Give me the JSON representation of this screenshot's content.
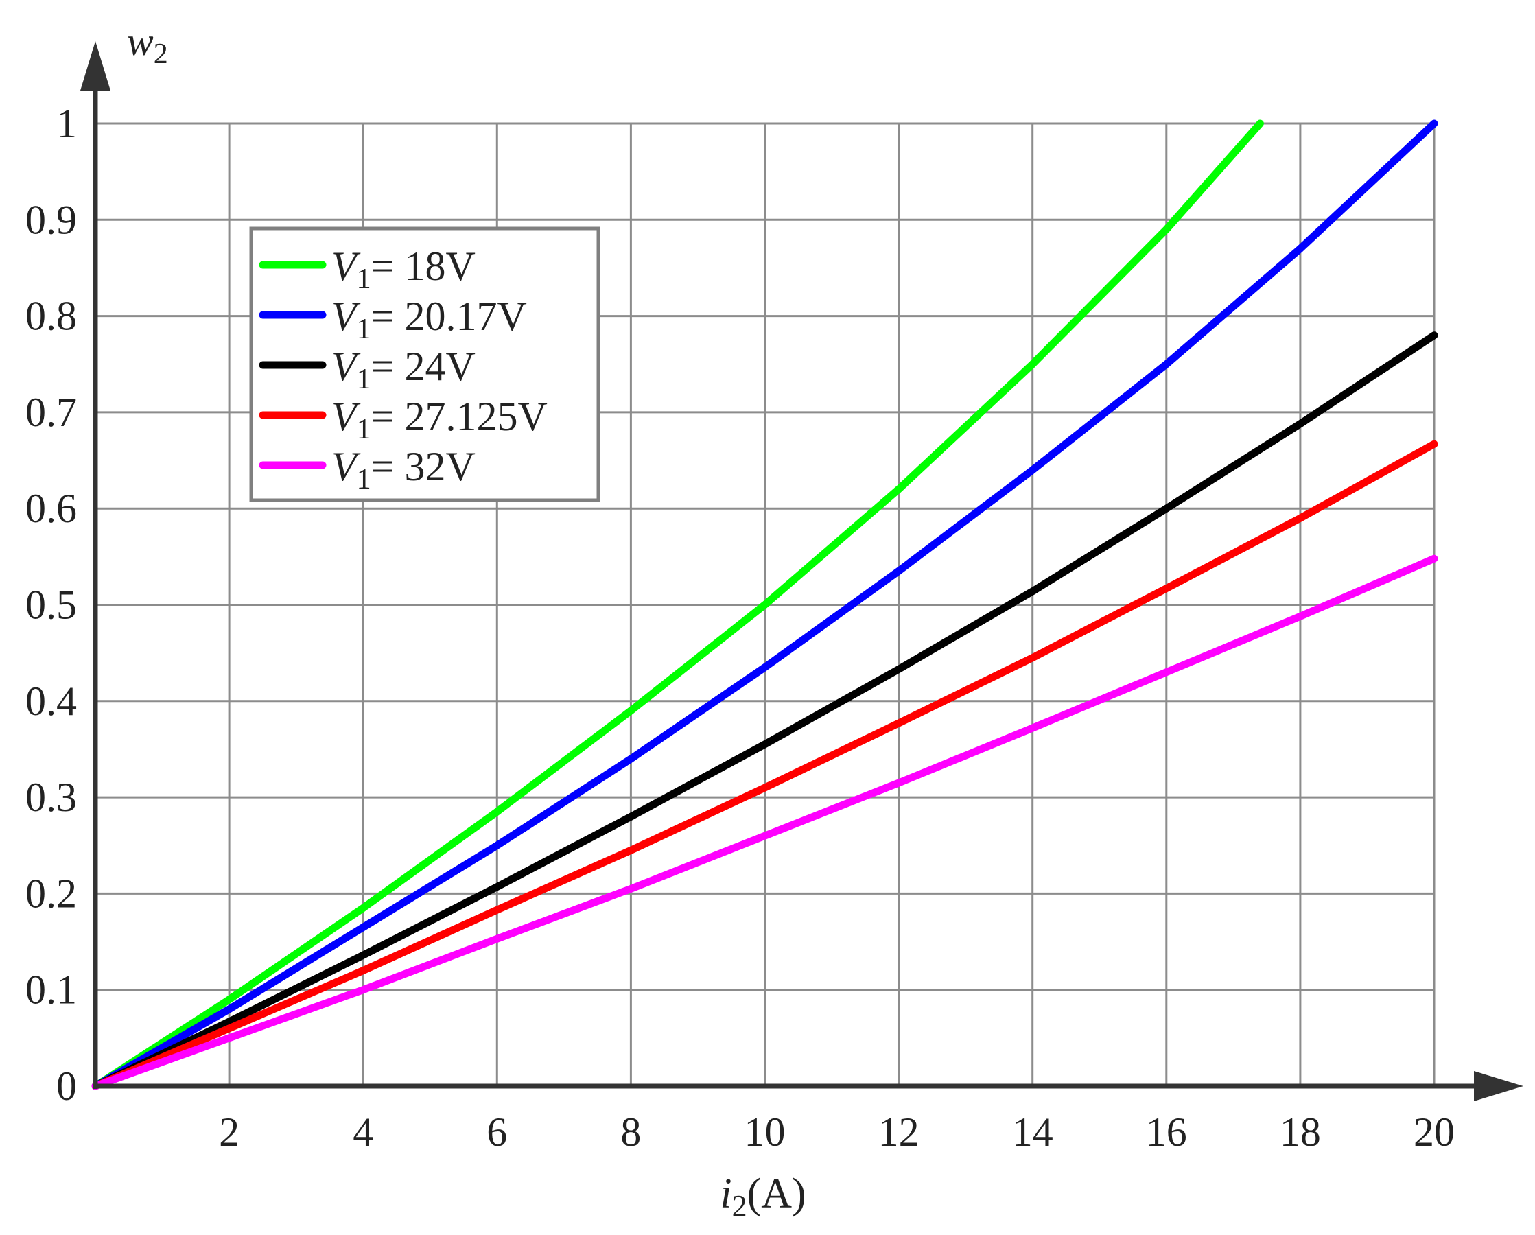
{
  "chart_data": {
    "type": "line",
    "xlabel": "i",
    "xlabel_sub": "2",
    "xlabel_unit": "(A)",
    "ylabel": "w",
    "ylabel_sub": "2",
    "xlim": [
      0,
      20
    ],
    "ylim": [
      0,
      1
    ],
    "x_ticks": [
      2,
      4,
      6,
      8,
      10,
      12,
      14,
      16,
      18,
      20
    ],
    "x_tick_labels": [
      "2",
      "4",
      "6",
      "8",
      "10",
      "12",
      "14",
      "16",
      "18",
      "20"
    ],
    "y_ticks": [
      0,
      0.1,
      0.2,
      0.3,
      0.4,
      0.5,
      0.6,
      0.7,
      0.8,
      0.9,
      1
    ],
    "y_tick_labels": [
      "0",
      "0.1",
      "0.2",
      "0.3",
      "0.4",
      "0.5",
      "0.6",
      "0.7",
      "0.8",
      "0.9",
      "1"
    ],
    "grid": true,
    "legend_position": "top-left",
    "series": [
      {
        "legend_var": "V",
        "legend_sub": "1",
        "legend_value": "= 18V",
        "color": "#00ff00",
        "x": [
          0,
          2,
          4,
          6,
          8,
          10,
          12,
          14,
          16,
          17.4
        ],
        "y": [
          0,
          0.09,
          0.185,
          0.285,
          0.39,
          0.5,
          0.62,
          0.75,
          0.89,
          1.0
        ]
      },
      {
        "legend_var": "V",
        "legend_sub": "1",
        "legend_value": "= 20.17V",
        "color": "#0000ff",
        "x": [
          0,
          2,
          4,
          6,
          8,
          10,
          12,
          14,
          16,
          18,
          20
        ],
        "y": [
          0,
          0.08,
          0.165,
          0.25,
          0.34,
          0.435,
          0.535,
          0.64,
          0.75,
          0.87,
          1.0
        ]
      },
      {
        "legend_var": "V",
        "legend_sub": "1",
        "legend_value": "= 24V",
        "color": "#000000",
        "x": [
          0,
          2,
          4,
          6,
          8,
          10,
          12,
          14,
          16,
          18,
          20
        ],
        "y": [
          0,
          0.067,
          0.136,
          0.207,
          0.28,
          0.355,
          0.433,
          0.514,
          0.6,
          0.688,
          0.78
        ]
      },
      {
        "legend_var": "V",
        "legend_sub": "1",
        "legend_value": "= 27.125V",
        "color": "#ff0000",
        "x": [
          0,
          2,
          4,
          6,
          8,
          10,
          12,
          14,
          16,
          18,
          20
        ],
        "y": [
          0,
          0.06,
          0.12,
          0.183,
          0.245,
          0.31,
          0.377,
          0.445,
          0.517,
          0.59,
          0.667
        ]
      },
      {
        "legend_var": "V",
        "legend_sub": "1",
        "legend_value": "= 32V",
        "color": "#ff00ff",
        "x": [
          0,
          2,
          4,
          6,
          8,
          10,
          12,
          14,
          16,
          18,
          20
        ],
        "y": [
          0,
          0.05,
          0.1,
          0.153,
          0.205,
          0.26,
          0.315,
          0.372,
          0.43,
          0.488,
          0.548
        ]
      }
    ]
  }
}
